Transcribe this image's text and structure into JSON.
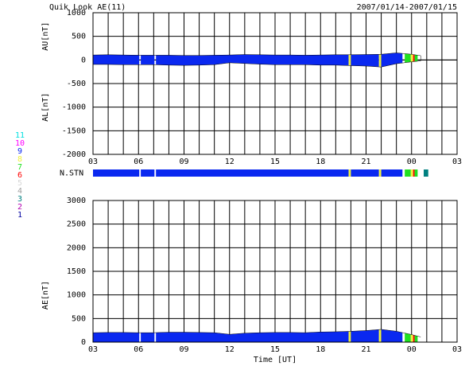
{
  "chart_data": [
    {
      "type": "band",
      "title": "Quik Look AE(11)",
      "subtitle": "2007/01/14-2007/01/15",
      "ylabels": [
        "AU[nT]",
        "AL[nT]"
      ],
      "x": [
        0,
        1,
        2,
        3,
        4,
        5,
        6,
        7,
        8,
        9,
        10,
        11,
        12,
        13,
        14,
        15,
        16,
        17,
        18,
        19,
        20,
        21,
        21.6
      ],
      "au": [
        105,
        110,
        105,
        100,
        100,
        100,
        95,
        95,
        100,
        105,
        115,
        110,
        105,
        105,
        100,
        105,
        110,
        110,
        115,
        120,
        150,
        120,
        90
      ],
      "al": [
        -95,
        -95,
        -100,
        -100,
        -100,
        -110,
        -115,
        -110,
        -100,
        -60,
        -75,
        -90,
        -100,
        -100,
        -100,
        -110,
        -110,
        -120,
        -130,
        -150,
        -80,
        -40,
        -20
      ],
      "xlim": [
        0,
        24
      ],
      "x_grid_step": 1,
      "xticks": [
        {
          "value": 0,
          "label": "03"
        },
        {
          "value": 3,
          "label": "06"
        },
        {
          "value": 6,
          "label": "09"
        },
        {
          "value": 9,
          "label": "12"
        },
        {
          "value": 12,
          "label": "15"
        },
        {
          "value": 15,
          "label": "18"
        },
        {
          "value": 18,
          "label": "21"
        },
        {
          "value": 21,
          "label": "00"
        },
        {
          "value": 24,
          "label": "03"
        }
      ],
      "ylim": [
        -2000,
        1000
      ],
      "yticks": [
        -2000,
        -1500,
        -1000,
        -500,
        0,
        500,
        1000
      ],
      "grid": true
    },
    {
      "type": "strip",
      "ylabel": "N.STN",
      "stations": [
        {
          "label": "11",
          "color": "#00e0e0"
        },
        {
          "label": "10",
          "color": "#ff00ff"
        },
        {
          "label": "9",
          "color": "#0a28f0"
        },
        {
          "label": "8",
          "color": "#f0f040"
        },
        {
          "label": "7",
          "color": "#20e020"
        },
        {
          "label": "6",
          "color": "#ff0000"
        },
        {
          "label": "5",
          "color": "#d8d8d8"
        },
        {
          "label": "4",
          "color": "#a0a0a0"
        },
        {
          "label": "3",
          "color": "#008080"
        },
        {
          "label": "2",
          "color": "#b000b0"
        },
        {
          "label": "1",
          "color": "#0000a0"
        }
      ],
      "segments": [
        {
          "start": 0,
          "end": 3.05,
          "n": 9
        },
        {
          "start": 3.15,
          "end": 4.05,
          "n": 9
        },
        {
          "start": 4.15,
          "end": 16.85,
          "n": 9
        },
        {
          "start": 16.85,
          "end": 17.0,
          "n": 8
        },
        {
          "start": 17.0,
          "end": 18.85,
          "n": 9
        },
        {
          "start": 18.85,
          "end": 19.0,
          "n": 8
        },
        {
          "start": 19.0,
          "end": 20.4,
          "n": 9
        },
        {
          "start": 20.55,
          "end": 20.95,
          "n": 7
        },
        {
          "start": 20.95,
          "end": 21.1,
          "n": 8
        },
        {
          "start": 21.1,
          "end": 21.2,
          "n": 6
        },
        {
          "start": 21.2,
          "end": 21.4,
          "n": 7
        },
        {
          "start": 21.8,
          "end": 22.1,
          "n": 3
        }
      ],
      "xlim": [
        0,
        24
      ]
    },
    {
      "type": "area",
      "ylabel": "AE[nT]",
      "xlabel": "Time [UT]",
      "x": [
        0,
        1,
        2,
        3,
        4,
        5,
        6,
        7,
        8,
        9,
        10,
        11,
        12,
        13,
        14,
        15,
        16,
        17,
        18,
        19,
        20,
        21,
        21.6
      ],
      "values": [
        200,
        205,
        205,
        200,
        200,
        210,
        210,
        205,
        200,
        165,
        190,
        200,
        205,
        205,
        200,
        215,
        220,
        230,
        245,
        270,
        230,
        160,
        110
      ],
      "xlim": [
        0,
        24
      ],
      "x_grid_step": 1,
      "xticks": [
        {
          "value": 0,
          "label": "03"
        },
        {
          "value": 3,
          "label": "06"
        },
        {
          "value": 6,
          "label": "09"
        },
        {
          "value": 9,
          "label": "12"
        },
        {
          "value": 12,
          "label": "15"
        },
        {
          "value": 15,
          "label": "18"
        },
        {
          "value": 18,
          "label": "21"
        },
        {
          "value": 21,
          "label": "00"
        },
        {
          "value": 24,
          "label": "03"
        }
      ],
      "ylim": [
        0,
        3000
      ],
      "yticks": [
        0,
        500,
        1000,
        1500,
        2000,
        2500,
        3000
      ],
      "grid": true
    }
  ]
}
